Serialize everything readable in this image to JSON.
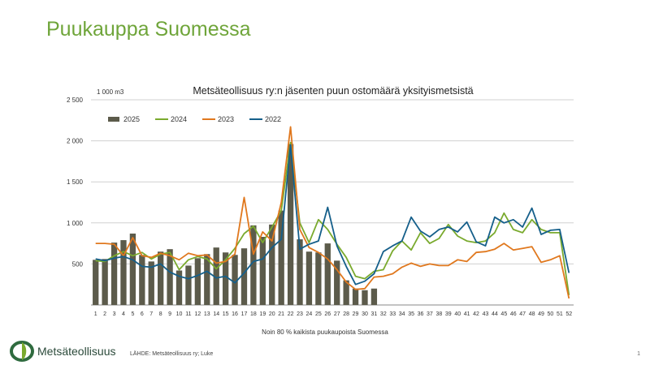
{
  "slide": {
    "title": "Puukauppa Suomessa",
    "caption": "Noin 80 % kaikista puukaupoista Suomessa",
    "brand": "Metsäteollisuus",
    "source": "LÄHDE: Metsäteollisuus ry; Luke",
    "page_number": "1"
  },
  "colors": {
    "title_green": "#6fa53a",
    "bar": "#5c5b4b",
    "s2024": "#7aaa2e",
    "s2023": "#e0781e",
    "s2022": "#155f8a",
    "grid": "#d0d0d0",
    "logo_green": "#2f6b3f"
  },
  "chart_data": {
    "type": "bar+line",
    "title": "Metsäteollisuus ry:n jäsenten puun ostomäärä yksityismetsistä",
    "unit_label": "1 000 m3",
    "ylim": [
      0,
      2500
    ],
    "yticks": [
      0,
      500,
      1000,
      1500,
      2000,
      2500
    ],
    "ytick_labels": [
      "",
      "500",
      "1 000",
      "1 500",
      "2 000",
      "2 500"
    ],
    "categories": [
      "1",
      "2",
      "3",
      "4",
      "5",
      "6",
      "7",
      "8",
      "9",
      "10",
      "11",
      "12",
      "13",
      "14",
      "15",
      "16",
      "17",
      "18",
      "19",
      "20",
      "21",
      "22",
      "23",
      "24",
      "25",
      "26",
      "27",
      "28",
      "29",
      "30",
      "31",
      "32",
      "33",
      "34",
      "35",
      "36",
      "37",
      "38",
      "39",
      "40",
      "41",
      "42",
      "43",
      "44",
      "45",
      "46",
      "47",
      "48",
      "49",
      "50",
      "51",
      "52"
    ],
    "grid": true,
    "legend_position": "top-left",
    "bars": {
      "name": "2025",
      "values": [
        550,
        560,
        760,
        790,
        870,
        610,
        530,
        650,
        680,
        420,
        480,
        570,
        620,
        700,
        640,
        610,
        690,
        970,
        830,
        980,
        1150,
        1960,
        800,
        650,
        640,
        750,
        540,
        300,
        200,
        180,
        200
      ]
    },
    "series": [
      {
        "name": "2024",
        "values": [
          540,
          530,
          600,
          650,
          600,
          640,
          560,
          620,
          640,
          430,
          550,
          590,
          560,
          440,
          550,
          690,
          870,
          960,
          760,
          950,
          1150,
          1980,
          1000,
          760,
          1040,
          920,
          740,
          580,
          350,
          320,
          410,
          430,
          660,
          780,
          670,
          880,
          750,
          810,
          980,
          840,
          780,
          760,
          780,
          880,
          1120,
          920,
          880,
          1040,
          920,
          880,
          880,
          120
        ]
      },
      {
        "name": "2023",
        "values": [
          750,
          750,
          740,
          600,
          820,
          600,
          580,
          630,
          600,
          550,
          630,
          600,
          610,
          510,
          530,
          620,
          1310,
          620,
          890,
          780,
          1250,
          2170,
          920,
          700,
          640,
          560,
          430,
          280,
          190,
          200,
          340,
          350,
          380,
          460,
          510,
          470,
          500,
          480,
          480,
          550,
          530,
          640,
          650,
          680,
          750,
          670,
          690,
          710,
          520,
          550,
          600,
          80
        ]
      },
      {
        "name": "2022",
        "values": [
          560,
          540,
          570,
          590,
          550,
          470,
          460,
          500,
          400,
          350,
          320,
          360,
          410,
          330,
          350,
          270,
          390,
          530,
          560,
          700,
          800,
          1950,
          680,
          740,
          780,
          1190,
          720,
          470,
          250,
          290,
          380,
          650,
          720,
          780,
          1070,
          900,
          830,
          920,
          950,
          890,
          1010,
          770,
          720,
          1070,
          1000,
          1040,
          950,
          1180,
          860,
          910,
          920,
          390
        ]
      }
    ]
  }
}
